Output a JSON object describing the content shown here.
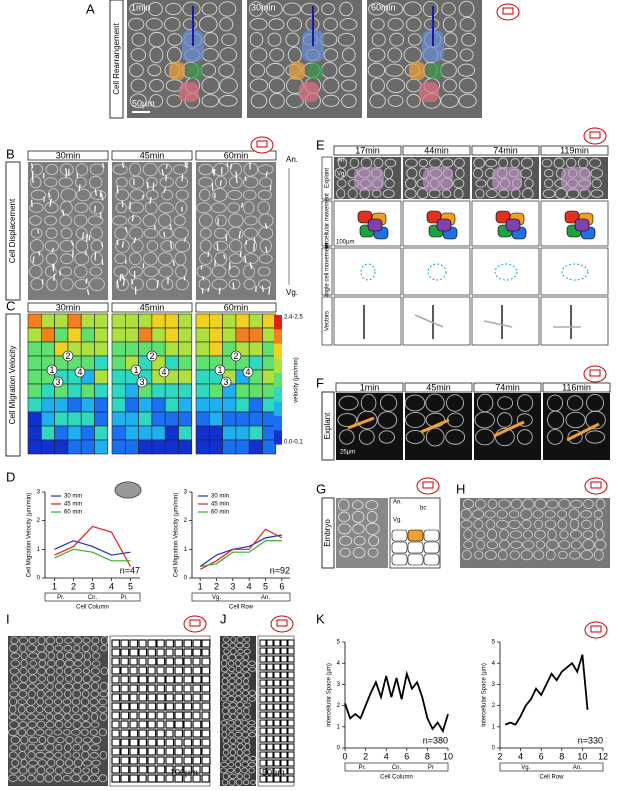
{
  "panels": {
    "a": {
      "label": "A",
      "row_label": "Cell Rearrangement",
      "times": [
        "1min",
        "30min",
        "60min"
      ],
      "scale_bar": "50µm"
    },
    "b": {
      "label": "B",
      "row_label": "Cell Displacement",
      "times": [
        "30min",
        "45min",
        "60min"
      ],
      "top": "An.",
      "bottom": "Vg."
    },
    "c": {
      "label": "C",
      "row_label": "Cell Migration Velocity",
      "times": [
        "30min",
        "45min",
        "60min"
      ],
      "cell_numbers": [
        "1",
        "2",
        "3",
        "4"
      ],
      "colorbar_max": "2.4-2.5",
      "colorbar_min": "0.0-0.1",
      "colorbar_label": "velocity (µm/min)"
    },
    "d": {
      "label": "D"
    },
    "e": {
      "label": "E",
      "times": [
        "17min",
        "44min",
        "74min",
        "119min"
      ],
      "rows": [
        "Explant",
        "Intercellular movement",
        "Single cell movement",
        "Vectors"
      ],
      "an": "An.",
      "vg": "Vg.",
      "scale_bar": "100µm"
    },
    "f": {
      "label": "F",
      "row_label": "Explant",
      "times": [
        "1min",
        "45min",
        "74min",
        "116min"
      ],
      "scale_bar": "25µm"
    },
    "g": {
      "label": "G",
      "row_label": "Embryo",
      "bc": "bc",
      "an": "An.",
      "vg": "Vg."
    },
    "h": {
      "label": "H"
    },
    "i": {
      "label": "I",
      "scale_bar": "100µm"
    },
    "j": {
      "label": "J",
      "scale_bar": "50µm"
    },
    "k": {
      "label": "K"
    }
  },
  "chart_data": [
    {
      "type": "line",
      "ylabel": "Cell Migration Velocity (µm/min)",
      "xlabel": "Cell Column",
      "categories": [
        "1",
        "2",
        "3",
        "4",
        "5"
      ],
      "groups": [
        "Pr.",
        "Cn.",
        "Pr."
      ],
      "annotation": "n=47",
      "ylim": [
        0,
        3
      ],
      "yticks": [
        0,
        1,
        2,
        3
      ],
      "legend": "top-left",
      "series": [
        {
          "name": "30 min",
          "color": "#1f2fbf",
          "values": [
            1.0,
            1.3,
            1.1,
            0.8,
            0.9
          ]
        },
        {
          "name": "45 min",
          "color": "#e02020",
          "values": [
            0.8,
            1.1,
            1.8,
            1.6,
            0.4
          ]
        },
        {
          "name": "60 min",
          "color": "#2fb02f",
          "values": [
            0.7,
            1.0,
            0.9,
            0.6,
            0.6
          ]
        }
      ]
    },
    {
      "type": "line",
      "ylabel": "Cell Migration Velocity (µm/min)",
      "xlabel": "Cell Row",
      "categories": [
        "1",
        "2",
        "3",
        "4",
        "5",
        "6"
      ],
      "groups": [
        "Vg.",
        "An."
      ],
      "annotation": "n=92",
      "ylim": [
        0,
        3
      ],
      "yticks": [
        0,
        1,
        2,
        3
      ],
      "legend": "top-left",
      "series": [
        {
          "name": "30 min",
          "color": "#1f2fbf",
          "values": [
            0.4,
            0.8,
            1.0,
            1.1,
            1.4,
            1.5
          ]
        },
        {
          "name": "45 min",
          "color": "#e02020",
          "values": [
            0.3,
            0.6,
            1.0,
            1.0,
            1.7,
            1.4
          ]
        },
        {
          "name": "60 min",
          "color": "#2fb02f",
          "values": [
            0.4,
            0.5,
            0.9,
            0.9,
            1.3,
            1.3
          ]
        }
      ]
    },
    {
      "type": "line",
      "ylabel": "Intercellular Space (µm)",
      "xlabel": "Cell Column",
      "groups": [
        "Pr.",
        "Cn.",
        "Pr"
      ],
      "annotation": "n=380",
      "xlim": [
        0,
        10
      ],
      "xticks": [
        0,
        2,
        4,
        6,
        8,
        10
      ],
      "ylim": [
        0,
        5
      ],
      "yticks": [
        0,
        1,
        2,
        3,
        4,
        5
      ],
      "x": [
        0,
        0.5,
        1,
        1.5,
        2,
        2.5,
        3,
        3.5,
        4,
        4.5,
        5,
        5.5,
        6,
        6.5,
        7,
        7.5,
        8,
        8.5,
        9,
        9.5,
        10
      ],
      "series": [
        {
          "color": "#000000",
          "values": [
            2.1,
            1.4,
            1.6,
            1.4,
            2.0,
            2.6,
            3.1,
            2.4,
            3.4,
            2.4,
            3.3,
            2.3,
            3.5,
            2.8,
            3.1,
            2.4,
            1.4,
            0.9,
            1.2,
            0.8,
            1.6
          ]
        }
      ]
    },
    {
      "type": "line",
      "ylabel": "Intercellular Space (µm)",
      "xlabel": "Cell Row",
      "groups": [
        "Vg.",
        "An."
      ],
      "annotation": "n=330",
      "xlim": [
        2,
        12
      ],
      "xticks": [
        2,
        4,
        6,
        8,
        10,
        12
      ],
      "ylim": [
        0,
        5
      ],
      "yticks": [
        0,
        1,
        2,
        3,
        4,
        5
      ],
      "x": [
        2.5,
        3,
        3.5,
        4,
        4.5,
        5,
        5.5,
        6,
        6.5,
        7,
        7.5,
        8,
        8.5,
        9,
        9.5,
        10,
        10.5
      ],
      "series": [
        {
          "color": "#000000",
          "values": [
            1.1,
            1.2,
            1.1,
            1.5,
            2.0,
            2.3,
            2.8,
            2.5,
            3.0,
            3.5,
            3.2,
            3.6,
            3.8,
            4.0,
            3.6,
            4.4,
            1.8
          ]
        }
      ]
    }
  ]
}
